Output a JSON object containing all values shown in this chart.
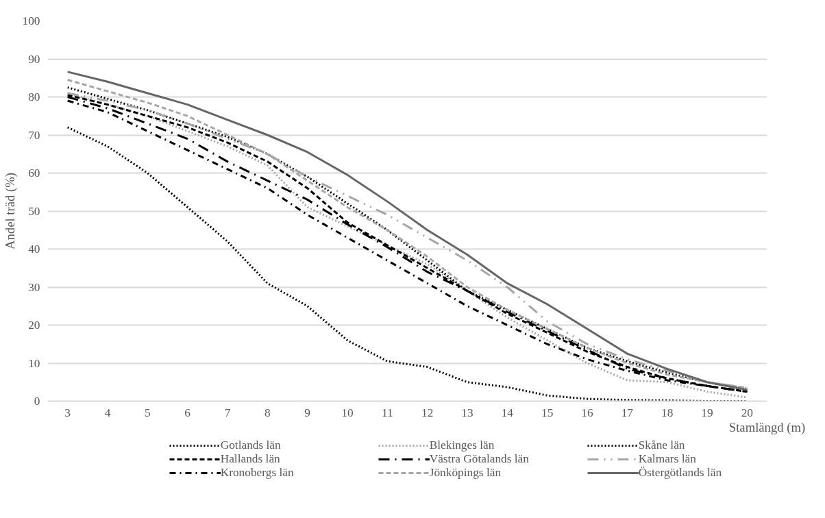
{
  "chart_data": {
    "type": "line",
    "xlabel": "Stamlängd (m)",
    "ylabel": "Andel träd (%)",
    "categories": [
      "3",
      "4",
      "5",
      "6",
      "7",
      "8",
      "9",
      "10",
      "11",
      "12",
      "13",
      "14",
      "15",
      "16",
      "17",
      "18",
      "19",
      "20"
    ],
    "ylim": [
      0,
      100
    ],
    "yticks": [
      0,
      10,
      20,
      30,
      40,
      50,
      60,
      70,
      80,
      90,
      100
    ],
    "grid": "y",
    "legend": "bottom",
    "series": [
      {
        "name": "Gotlands län",
        "color": "#000000",
        "line_style": "dotted",
        "values": [
          72,
          67,
          60,
          51,
          42,
          31,
          25,
          16,
          10.5,
          9,
          5,
          3.7,
          1.5,
          0.6,
          0.3,
          0.2,
          0,
          0
        ]
      },
      {
        "name": "Blekinges län",
        "color": "#a6a6a6",
        "line_style": "dotted",
        "values": [
          81,
          78,
          75,
          71,
          67,
          62,
          51,
          46,
          41,
          36,
          29,
          22,
          16,
          10,
          5.5,
          5,
          2.5,
          1
        ]
      },
      {
        "name": "Skåne län",
        "color": "#000000",
        "line_style": "dotted",
        "values": [
          82.5,
          79.5,
          76.5,
          73,
          69.5,
          65,
          59,
          52,
          45,
          37,
          29,
          24,
          19,
          14,
          10.5,
          7.5,
          5,
          3
        ]
      },
      {
        "name": "Hallands län",
        "color": "#000000",
        "line_style": "dashed",
        "values": [
          80.5,
          78,
          75,
          72,
          68,
          63,
          56,
          47,
          41,
          35,
          29,
          23,
          18,
          13,
          9,
          6,
          4,
          2.5
        ]
      },
      {
        "name": "Västra Götalands län",
        "color": "#000000",
        "line_style": "longdashdot",
        "values": [
          80,
          77,
          73,
          69,
          63,
          58,
          53,
          46.5,
          40.5,
          34,
          29,
          23.5,
          18.5,
          13.5,
          8.5,
          6,
          4,
          2.5
        ]
      },
      {
        "name": "Kalmars län",
        "color": "#a6a6a6",
        "line_style": "longdashdotdot",
        "values": [
          81,
          79,
          76.5,
          73,
          69,
          65,
          59,
          54,
          49,
          43,
          37,
          30,
          21,
          15,
          11,
          8,
          5,
          3.5
        ]
      },
      {
        "name": "Kronobergs län",
        "color": "#000000",
        "line_style": "dashdot",
        "values": [
          79,
          76,
          71,
          66,
          61,
          56,
          49,
          43,
          37,
          31,
          25,
          20,
          15,
          11,
          8,
          5.5,
          4,
          2.5
        ]
      },
      {
        "name": "Jönköpings län",
        "color": "#a6a6a6",
        "line_style": "dashed",
        "values": [
          84.5,
          81.5,
          78.5,
          75,
          70,
          65,
          58,
          51,
          45,
          38,
          30,
          24,
          19,
          14,
          10,
          7,
          5,
          3.5
        ]
      },
      {
        "name": "Östergötlands län",
        "color": "#666666",
        "line_style": "solid",
        "values": [
          86.6,
          84,
          81,
          78,
          74,
          70,
          65.5,
          59.5,
          52.5,
          45,
          38.5,
          31,
          25.5,
          19,
          12.5,
          8.5,
          5,
          3
        ]
      }
    ]
  }
}
